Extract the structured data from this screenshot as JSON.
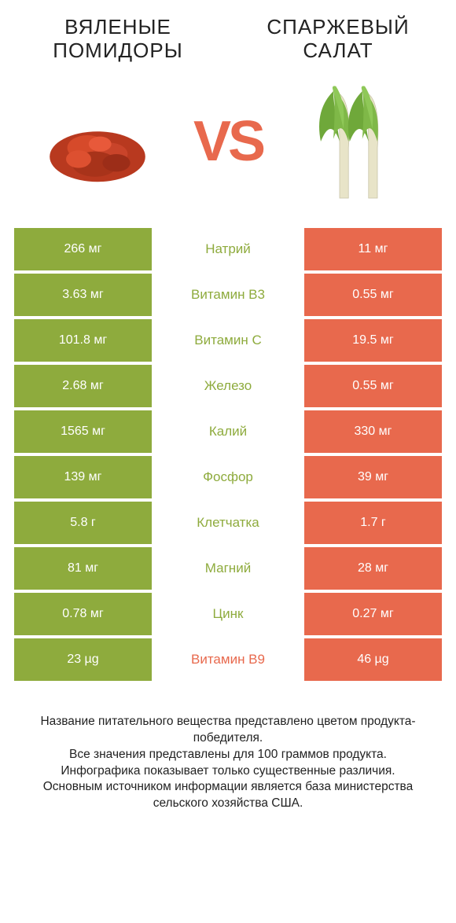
{
  "colors": {
    "green": "#8eab3d",
    "orange": "#e8694d",
    "white": "#ffffff",
    "text": "#222222"
  },
  "left": {
    "title": "ВЯЛЕНЫЕ ПОМИДОРЫ"
  },
  "right": {
    "title": "СПАРЖЕВЫЙ САЛАТ"
  },
  "vs": "VS",
  "rows": [
    {
      "left": "266 мг",
      "label": "Натрий",
      "right": "11 мг",
      "winner": "left"
    },
    {
      "left": "3.63 мг",
      "label": "Витамин B3",
      "right": "0.55 мг",
      "winner": "left"
    },
    {
      "left": "101.8 мг",
      "label": "Витамин C",
      "right": "19.5 мг",
      "winner": "left"
    },
    {
      "left": "2.68 мг",
      "label": "Железо",
      "right": "0.55 мг",
      "winner": "left"
    },
    {
      "left": "1565 мг",
      "label": "Калий",
      "right": "330 мг",
      "winner": "left"
    },
    {
      "left": "139 мг",
      "label": "Фосфор",
      "right": "39 мг",
      "winner": "left"
    },
    {
      "left": "5.8 г",
      "label": "Клетчатка",
      "right": "1.7 г",
      "winner": "left"
    },
    {
      "left": "81 мг",
      "label": "Магний",
      "right": "28 мг",
      "winner": "left"
    },
    {
      "left": "0.78 мг",
      "label": "Цинк",
      "right": "0.27 мг",
      "winner": "left"
    },
    {
      "left": "23 µg",
      "label": "Витамин B9",
      "right": "46 µg",
      "winner": "right"
    }
  ],
  "footer": {
    "l1": "Название питательного вещества представлено цветом продукта-победителя.",
    "l2": "Все значения представлены для 100 граммов продукта.",
    "l3": "Инфографика показывает только существенные различия.",
    "l4": "Основным источником информации является база министерства сельского хозяйства США."
  }
}
